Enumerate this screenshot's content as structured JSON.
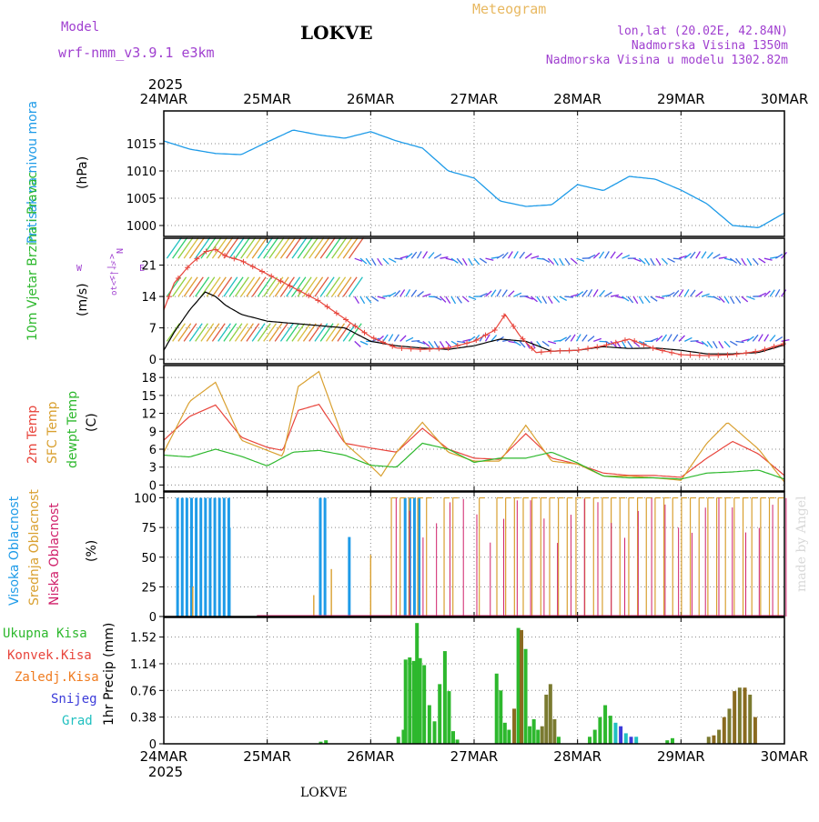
{
  "header": {
    "model_label": "Model",
    "model_name": "wrf-nmm_v3.9.1 e3km",
    "station": "LOKVE",
    "chart_title": "Meteogram",
    "coords": "lon,lat (20.02E, 42.84N)",
    "altitude": "Nadmorska Visina 1350m",
    "model_altitude": "Nadmorska Visina u modelu 1302.82m",
    "footer_station": "LOKVE",
    "credit": "made by Angel"
  },
  "colors": {
    "pressure": "#1e9be8",
    "wind10m": "#000000",
    "gust": "#e8453c",
    "temp2m": "#e8453c",
    "sfc": "#d9a030",
    "dewpt": "#2db82d",
    "high_cloud": "#1e9be8",
    "mid_cloud": "#d9a030",
    "low_cloud": "#d0206a",
    "total_precip": "#2db82d",
    "conv_precip": "#e8453c",
    "frz_precip": "#f07c20",
    "snow": "#3b3bd9",
    "hail": "#20c0c0"
  },
  "chart_data": [
    {
      "type": "line",
      "title": "Pritisak na nivou mora",
      "ylabel": "(hPa)",
      "x_ticks": [
        "24MAR",
        "25MAR",
        "26MAR",
        "27MAR",
        "28MAR",
        "29MAR",
        "30MAR"
      ],
      "year_label": "2025",
      "ylim": [
        998,
        1021
      ],
      "y_ticks": [
        "1000",
        "1005",
        "1010",
        "1015"
      ],
      "series": [
        {
          "name": "MSLP",
          "x": [
            0,
            0.25,
            0.5,
            0.75,
            1,
            1.25,
            1.5,
            1.75,
            2,
            2.25,
            2.5,
            2.75,
            3,
            3.25,
            3.5,
            3.75,
            4,
            4.25,
            4.5,
            4.75,
            5,
            5.25,
            5.5,
            5.75,
            6
          ],
          "values": [
            1015.5,
            1014,
            1013.2,
            1013,
            1015.3,
            1017.5,
            1016.6,
            1016,
            1017.2,
            1015.5,
            1014.2,
            1010,
            1008.7,
            1004.5,
            1003.5,
            1003.8,
            1007.5,
            1006.4,
            1009,
            1008.5,
            1006.5,
            1004,
            1000,
            999.6,
            1002.3
          ]
        }
      ]
    },
    {
      "type": "line",
      "title": "10m Vjetar Brzina i Pravac",
      "ylabel": "(m/s)",
      "arrow_legend": {
        "n": "N",
        "w": "W",
        "e": "E",
        "s": "S",
        "arrows": "<-|->",
        "rot": "ot<-|->"
      },
      "ylim": [
        -1,
        27
      ],
      "y_ticks": [
        "0",
        "7",
        "14",
        "21"
      ],
      "series": [
        {
          "name": "10m wind",
          "x": [
            0,
            0.1,
            0.25,
            0.4,
            0.5,
            0.6,
            0.75,
            1,
            1.25,
            1.5,
            1.75,
            2,
            2.25,
            2.5,
            2.75,
            3,
            3.25,
            3.5,
            3.75,
            4,
            4.25,
            4.5,
            4.75,
            5,
            5.25,
            5.5,
            5.75,
            6
          ],
          "values": [
            2,
            6,
            11,
            15,
            14,
            12,
            10,
            8.5,
            8,
            7.5,
            7,
            4,
            3,
            2.5,
            2.2,
            3,
            4.5,
            4,
            1.8,
            2,
            2.8,
            2.4,
            2.5,
            2,
            1.2,
            1.2,
            1.5,
            3.2
          ]
        },
        {
          "name": "gust",
          "x": [
            0,
            0.1,
            0.25,
            0.4,
            0.5,
            0.6,
            0.75,
            1,
            1.25,
            1.5,
            1.75,
            2,
            2.25,
            2.5,
            2.75,
            3,
            3.2,
            3.3,
            3.45,
            3.6,
            3.75,
            4,
            4.25,
            4.5,
            4.75,
            5,
            5.25,
            5.5,
            5.75,
            6
          ],
          "values": [
            11,
            17,
            21,
            24,
            24.5,
            23,
            22,
            19,
            16,
            13,
            9,
            5,
            2.5,
            2.2,
            2.5,
            4,
            6.5,
            10,
            5,
            1.5,
            1.8,
            2,
            3,
            4.5,
            2.3,
            1,
            0.8,
            1,
            1.8,
            3.5
          ]
        }
      ],
      "barb_rows": [
        22.5,
        14,
        4
      ]
    },
    {
      "type": "line",
      "title": "2m Temp / SFC Temp / dewpt Temp",
      "ylabel": "(C)",
      "ylim": [
        -1,
        20
      ],
      "y_ticks": [
        "0",
        "3",
        "6",
        "9",
        "12",
        "15",
        "18"
      ],
      "series": [
        {
          "name": "2m Temp",
          "x": [
            0,
            0.25,
            0.5,
            0.75,
            1,
            1.15,
            1.3,
            1.5,
            1.75,
            2,
            2.25,
            2.5,
            2.75,
            3,
            3.25,
            3.5,
            3.75,
            4,
            4.25,
            4.5,
            4.75,
            5,
            5.25,
            5.5,
            5.75,
            6
          ],
          "values": [
            7.5,
            11.5,
            13.4,
            8,
            6.3,
            5.8,
            12.5,
            13.5,
            7,
            6.2,
            5.5,
            9.5,
            6,
            4.5,
            4.3,
            8.6,
            4.5,
            3.5,
            2,
            1.6,
            1.6,
            1.3,
            4.5,
            7.3,
            5.2,
            1.6
          ]
        },
        {
          "name": "SFC Temp",
          "x": [
            0,
            0.25,
            0.5,
            0.75,
            1,
            1.15,
            1.3,
            1.5,
            1.75,
            2,
            2.1,
            2.25,
            2.5,
            2.75,
            3,
            3.25,
            3.5,
            3.75,
            4,
            4.25,
            4.5,
            4.75,
            5,
            5.25,
            5.45,
            5.75,
            6
          ],
          "values": [
            5.5,
            14,
            17.2,
            7.5,
            5.8,
            4.8,
            16.5,
            19,
            7,
            3.2,
            1.5,
            5.5,
            10.5,
            5.5,
            4,
            4,
            10,
            4,
            3.5,
            1.5,
            1.5,
            1.2,
            0.8,
            7,
            10.5,
            6,
            0.5
          ]
        },
        {
          "name": "dewpt Temp",
          "x": [
            0,
            0.25,
            0.5,
            0.75,
            1,
            1.25,
            1.5,
            1.75,
            2,
            2.25,
            2.5,
            2.75,
            3,
            3.25,
            3.5,
            3.75,
            4,
            4.25,
            4.5,
            4.75,
            5,
            5.25,
            5.5,
            5.75,
            6
          ],
          "values": [
            5,
            4.7,
            6,
            4.8,
            3.2,
            5.5,
            5.8,
            5,
            3.3,
            3,
            7,
            6,
            3.8,
            4.5,
            4.5,
            5.5,
            3.7,
            1.5,
            1.2,
            1.2,
            1,
            2,
            2.2,
            2.5,
            1
          ]
        }
      ]
    },
    {
      "type": "bar",
      "title": "Visoka Oblacnost / Srednja Oblacnost / Niska Oblacnost",
      "ylabel": "(%)",
      "ylim": [
        0,
        105
      ],
      "y_ticks": [
        "0",
        "25",
        "50",
        "75",
        "100"
      ]
    },
    {
      "type": "bar",
      "title": "1hr Precip (mm)",
      "ylim": [
        0,
        1.8
      ],
      "y_ticks": [
        "0",
        "0.38",
        "0.76",
        "1.14",
        "1.52"
      ],
      "legend": [
        "Ukupna Kisa",
        "Konvek.Kisa",
        "Zaledj.Kisa",
        "Snijeg",
        "Grad"
      ]
    }
  ]
}
